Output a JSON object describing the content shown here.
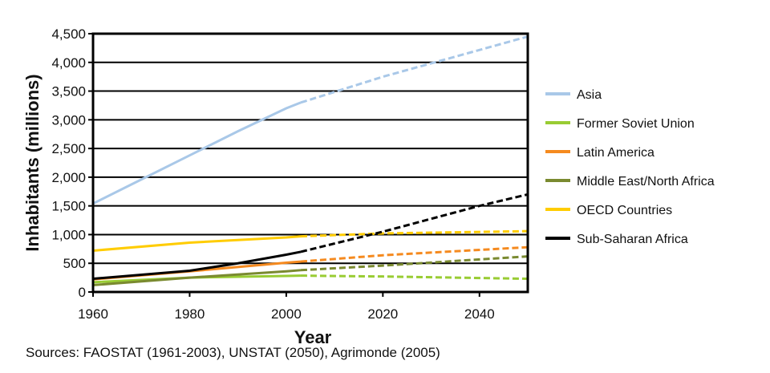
{
  "chart_data": {
    "type": "line",
    "xlabel": "Year",
    "ylabel": "Inhabitants (millions)",
    "xlim": [
      1960,
      2050
    ],
    "ylim": [
      0,
      4500
    ],
    "xticks": [
      1960,
      1980,
      2000,
      2020,
      2040
    ],
    "yticks": [
      0,
      500,
      1000,
      1500,
      2000,
      2500,
      3000,
      3500,
      4000,
      4500
    ],
    "ytick_labels": [
      "0",
      "500",
      "1,000",
      "1,500",
      "2,000",
      "2,500",
      "3,000",
      "3,500",
      "4,000",
      "4,500"
    ],
    "grid": true,
    "legend": "right",
    "projection_note": "solid = observed to 2003, dashed = projection to 2050",
    "series": [
      {
        "name": "Asia",
        "color": "#a9c8e8",
        "observed": [
          [
            1960,
            1540
          ],
          [
            1970,
            1960
          ],
          [
            1980,
            2380
          ],
          [
            1990,
            2800
          ],
          [
            2000,
            3200
          ],
          [
            2003,
            3300
          ]
        ],
        "projected": [
          [
            2003,
            3300
          ],
          [
            2020,
            3750
          ],
          [
            2035,
            4100
          ],
          [
            2050,
            4450
          ]
        ]
      },
      {
        "name": "Former Soviet Union",
        "color": "#99cc33",
        "observed": [
          [
            1960,
            170
          ],
          [
            1980,
            250
          ],
          [
            2000,
            280
          ],
          [
            2003,
            285
          ]
        ],
        "projected": [
          [
            2003,
            285
          ],
          [
            2020,
            270
          ],
          [
            2050,
            230
          ]
        ]
      },
      {
        "name": "Latin America",
        "color": "#f58a1f",
        "observed": [
          [
            1960,
            220
          ],
          [
            1980,
            360
          ],
          [
            2000,
            510
          ],
          [
            2003,
            530
          ]
        ],
        "projected": [
          [
            2003,
            530
          ],
          [
            2020,
            640
          ],
          [
            2050,
            780
          ]
        ]
      },
      {
        "name": "Middle East/North Africa",
        "color": "#7a8a30",
        "observed": [
          [
            1960,
            120
          ],
          [
            1980,
            250
          ],
          [
            2000,
            360
          ],
          [
            2003,
            380
          ]
        ],
        "projected": [
          [
            2003,
            380
          ],
          [
            2020,
            460
          ],
          [
            2050,
            620
          ]
        ]
      },
      {
        "name": "OECD Countries",
        "color": "#ffcc00",
        "observed": [
          [
            1960,
            720
          ],
          [
            1980,
            860
          ],
          [
            2000,
            950
          ],
          [
            2003,
            970
          ]
        ],
        "projected": [
          [
            2003,
            970
          ],
          [
            2020,
            1020
          ],
          [
            2050,
            1060
          ]
        ]
      },
      {
        "name": "Sub-Saharan Africa",
        "color": "#000000",
        "observed": [
          [
            1960,
            230
          ],
          [
            1980,
            370
          ],
          [
            1990,
            500
          ],
          [
            2000,
            650
          ],
          [
            2003,
            700
          ]
        ],
        "projected": [
          [
            2003,
            700
          ],
          [
            2020,
            1050
          ],
          [
            2040,
            1500
          ],
          [
            2050,
            1700
          ]
        ]
      }
    ]
  },
  "source": "Sources: FAOSTAT (1961-2003), UNSTAT (2050), Agrimonde (2005)"
}
